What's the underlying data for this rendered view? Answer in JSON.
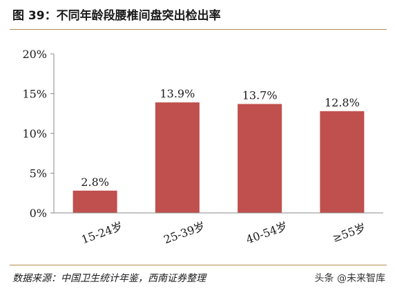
{
  "header": {
    "title": "图 39：不同年龄段腰椎间盘突出检出率"
  },
  "chart_data": {
    "type": "bar",
    "categories": [
      "15-24岁",
      "25-39岁",
      "40-54岁",
      "≥55岁"
    ],
    "values": [
      2.8,
      13.9,
      13.7,
      12.8
    ],
    "data_labels": [
      "2.8%",
      "13.9%",
      "13.7%",
      "12.8%"
    ],
    "title": "",
    "xlabel": "",
    "ylabel": "",
    "ylim": [
      0,
      20
    ],
    "yticks": [
      0,
      5,
      10,
      15,
      20
    ],
    "ytick_labels": [
      "0%",
      "5%",
      "10%",
      "15%",
      "20%"
    ],
    "grid": false,
    "bar_color": "#c0504d"
  },
  "footer": {
    "source": "数据来源：中国卫生统计年鉴，西南证券整理",
    "watermark": "头条 @未来智库"
  }
}
